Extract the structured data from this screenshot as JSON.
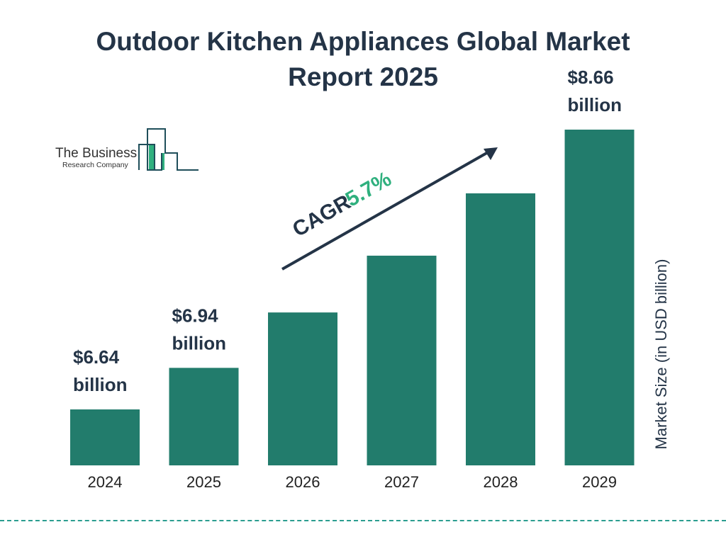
{
  "title": "Outdoor Kitchen Appliances Global Market Report 2025",
  "logo": {
    "line1": "The Business",
    "line2": "Research Company"
  },
  "colors": {
    "bar": "#227C6C",
    "text": "#243447",
    "cagr": "#2FB07E",
    "divider": "#2A9D8F"
  },
  "chart_data": {
    "type": "bar",
    "title": "Outdoor Kitchen Appliances Global Market Report 2025",
    "categories": [
      "2024",
      "2025",
      "2026",
      "2027",
      "2028",
      "2029"
    ],
    "values": [
      6.64,
      6.94,
      7.34,
      7.75,
      8.2,
      8.66
    ],
    "data_labels": [
      {
        "index": 0,
        "line1": "$6.64",
        "line2": "billion"
      },
      {
        "index": 1,
        "line1": "$6.94",
        "line2": "billion"
      },
      {
        "index": 5,
        "line1": "$8.66",
        "line2": "billion"
      }
    ],
    "ylabel": "Market Size (in USD billion)",
    "xlabel": "",
    "grid": false,
    "annotation": {
      "label": "CAGR",
      "value": "5.7%"
    }
  }
}
